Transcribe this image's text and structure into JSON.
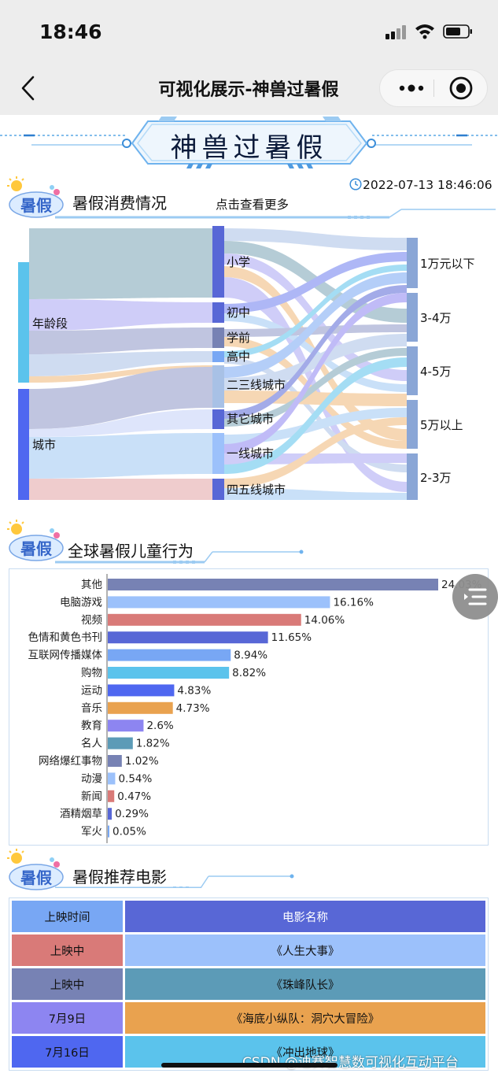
{
  "status_bar": {
    "time": "18:46"
  },
  "nav": {
    "title": "可视化展示-神兽过暑假"
  },
  "banner": {
    "title": "神兽过暑假"
  },
  "section1": {
    "title": "暑假消费情况",
    "more": "点击查看更多",
    "timestamp": "2022-07-13 18:46:06",
    "logo_text": "暑假"
  },
  "sankey": {
    "left_nodes": [
      "年龄段",
      "城市"
    ],
    "middle_nodes": [
      "小学",
      "初中",
      "学前",
      "高中",
      "二三线城市",
      "其它城市",
      "一线城市",
      "四五线城市"
    ],
    "right_nodes": [
      "1万元以下",
      "3-4万",
      "4-5万",
      "5万以上",
      "2-3万"
    ]
  },
  "section2": {
    "title": "全球暑假儿童行为",
    "logo_text": "暑假"
  },
  "chart_data": {
    "type": "bar",
    "orientation": "horizontal",
    "categories": [
      "其他",
      "电脑游戏",
      "视频",
      "色情和黄色书刊",
      "互联网传播媒体",
      "购物",
      "运动",
      "音乐",
      "教育",
      "名人",
      "网络爆红事物",
      "动漫",
      "新闻",
      "酒精烟草",
      "军火"
    ],
    "values": [
      24.03,
      16.16,
      14.06,
      11.65,
      8.94,
      8.82,
      4.83,
      4.73,
      2.6,
      1.82,
      1.02,
      0.54,
      0.47,
      0.29,
      0.05
    ],
    "labels": [
      "24.03%",
      "16.16%",
      "14.06%",
      "11.65%",
      "8.94%",
      "8.82%",
      "4.83%",
      "4.73%",
      "2.6%",
      "1.82%",
      "1.02%",
      "0.54%",
      "0.47%",
      "0.29%",
      "0.05%"
    ],
    "colors": [
      "#7782b4",
      "#9cc1fb",
      "#d97a78",
      "#5867d6",
      "#78a7f4",
      "#5bc3ec",
      "#4f67f0",
      "#e9a24f",
      "#8d85f1",
      "#5c9bb7",
      "#7782b4",
      "#9cc1fb",
      "#d97a78",
      "#5867d6",
      "#78a7f4"
    ]
  },
  "section3": {
    "title": "暑假推荐电影",
    "logo_text": "暑假"
  },
  "movies": {
    "header": {
      "time": "上映时间",
      "name": "电影名称"
    },
    "rows": [
      {
        "time": "上映中",
        "name": "《人生大事》"
      },
      {
        "time": "上映中",
        "name": "《珠峰队长》"
      },
      {
        "time": "7月9日",
        "name": "《海底小纵队：洞穴大冒险》"
      },
      {
        "time": "7月16日",
        "name": "《冲出地球》"
      }
    ]
  },
  "watermark": "CSDN @迪赛智慧数可视化互动平台"
}
